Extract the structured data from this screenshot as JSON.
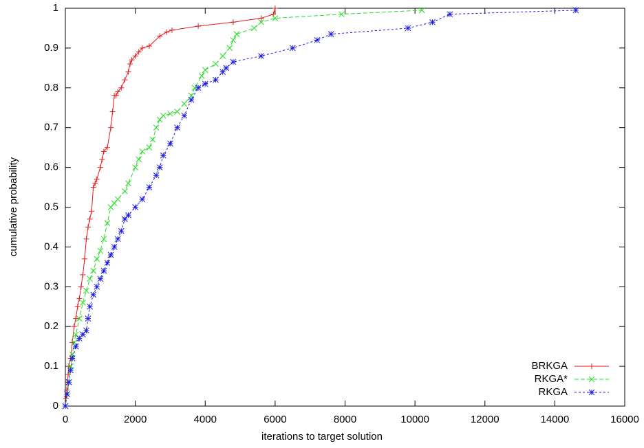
{
  "chart_data": {
    "type": "line",
    "xlabel": "iterations to target solution",
    "ylabel": "cumulative probability",
    "xlim": [
      0,
      16000
    ],
    "xticks": [
      0,
      2000,
      4000,
      6000,
      8000,
      10000,
      12000,
      14000,
      16000
    ],
    "ylim": [
      0,
      1
    ],
    "yticks": [
      0,
      0.1,
      0.2,
      0.3,
      0.4,
      0.5,
      0.6,
      0.7,
      0.8,
      0.9,
      1
    ],
    "legend": "bottom-right",
    "series": [
      {
        "name": "BRKGA",
        "color": "#e41a1c",
        "marker": "plus",
        "dash": "none",
        "x": [
          0,
          20,
          40,
          60,
          80,
          100,
          150,
          200,
          250,
          300,
          350,
          400,
          450,
          500,
          550,
          600,
          650,
          700,
          750,
          800,
          850,
          900,
          1000,
          1050,
          1100,
          1200,
          1300,
          1350,
          1400,
          1450,
          1500,
          1600,
          1700,
          1800,
          1850,
          1900,
          2000,
          2100,
          2200,
          2400,
          2700,
          2900,
          3050,
          3800,
          4800,
          5600,
          5950,
          6000
        ],
        "values": [
          0,
          0.02,
          0.04,
          0.06,
          0.08,
          0.1,
          0.12,
          0.16,
          0.2,
          0.22,
          0.25,
          0.27,
          0.3,
          0.33,
          0.37,
          0.42,
          0.45,
          0.47,
          0.49,
          0.55,
          0.56,
          0.57,
          0.6,
          0.62,
          0.64,
          0.65,
          0.7,
          0.74,
          0.78,
          0.78,
          0.79,
          0.8,
          0.82,
          0.84,
          0.86,
          0.87,
          0.88,
          0.89,
          0.9,
          0.905,
          0.93,
          0.94,
          0.945,
          0.955,
          0.965,
          0.975,
          0.985,
          1.0
        ]
      },
      {
        "name": "RKGA*",
        "color": "#22dd22",
        "marker": "cross",
        "dash": "6,3",
        "x": [
          0,
          50,
          100,
          150,
          200,
          250,
          300,
          400,
          500,
          600,
          700,
          800,
          900,
          1000,
          1100,
          1200,
          1300,
          1400,
          1500,
          1700,
          1800,
          2000,
          2100,
          2200,
          2400,
          2500,
          2600,
          2700,
          2800,
          3000,
          3200,
          3400,
          3600,
          3700,
          3900,
          4000,
          4300,
          4500,
          4700,
          4800,
          4900,
          5400,
          5600,
          6000,
          7900,
          10200
        ],
        "values": [
          0,
          0.03,
          0.06,
          0.1,
          0.13,
          0.16,
          0.18,
          0.22,
          0.26,
          0.29,
          0.32,
          0.34,
          0.37,
          0.39,
          0.42,
          0.46,
          0.5,
          0.51,
          0.52,
          0.54,
          0.56,
          0.6,
          0.62,
          0.64,
          0.65,
          0.67,
          0.7,
          0.72,
          0.73,
          0.735,
          0.74,
          0.76,
          0.78,
          0.8,
          0.83,
          0.845,
          0.86,
          0.88,
          0.9,
          0.92,
          0.935,
          0.95,
          0.965,
          0.975,
          0.985,
          0.995
        ]
      },
      {
        "name": "RKGA",
        "color": "#1a1ae0",
        "marker": "star",
        "dash": "3,3",
        "x": [
          0,
          50,
          100,
          150,
          200,
          300,
          400,
          500,
          600,
          650,
          700,
          800,
          900,
          1000,
          1100,
          1200,
          1300,
          1400,
          1500,
          1600,
          1700,
          1800,
          2000,
          2200,
          2400,
          2600,
          2700,
          2800,
          3000,
          3200,
          3400,
          3600,
          3800,
          4000,
          4300,
          4500,
          4600,
          4800,
          5600,
          6500,
          7200,
          7600,
          9800,
          10500,
          11000,
          14600
        ],
        "values": [
          0,
          0.03,
          0.06,
          0.09,
          0.12,
          0.15,
          0.17,
          0.18,
          0.19,
          0.22,
          0.25,
          0.28,
          0.3,
          0.32,
          0.34,
          0.36,
          0.38,
          0.4,
          0.42,
          0.44,
          0.47,
          0.48,
          0.5,
          0.52,
          0.55,
          0.58,
          0.6,
          0.63,
          0.66,
          0.7,
          0.73,
          0.77,
          0.8,
          0.81,
          0.82,
          0.84,
          0.85,
          0.865,
          0.88,
          0.9,
          0.92,
          0.935,
          0.95,
          0.965,
          0.985,
          0.995
        ]
      }
    ]
  }
}
